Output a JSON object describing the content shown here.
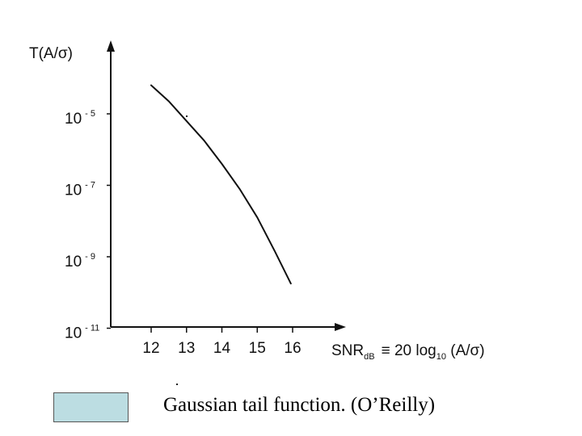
{
  "chart_data": {
    "type": "line",
    "ylabel": "T(A/σ)",
    "xlabel_main": "SNR",
    "xlabel_sub": "dB",
    "xlabel_rest_a": "≡ 20 log",
    "xlabel_sub2": "10",
    "xlabel_rest_b": " (A/σ)",
    "x_ticks": [
      "12",
      "13",
      "14",
      "15",
      "16"
    ],
    "y_ticks": [
      {
        "base": "10",
        "exp": "- 5"
      },
      {
        "base": "10",
        "exp": "- 7"
      },
      {
        "base": "10",
        "exp": "- 9"
      },
      {
        "base": "10",
        "exp": "- 11"
      }
    ],
    "xlim": [
      11.6,
      17.0
    ],
    "ylim_log10": [
      -11,
      -3.6
    ],
    "y_scale": "log",
    "series": [
      {
        "x": [
          12.0,
          12.5,
          13.0,
          13.5,
          14.0,
          14.5,
          15.0,
          15.5,
          15.95
        ],
        "log10_y": [
          -4.2,
          -4.65,
          -5.2,
          -5.75,
          -6.4,
          -7.1,
          -7.9,
          -8.85,
          -9.75
        ]
      }
    ],
    "colors": {
      "line": "#111111",
      "axis": "#111111"
    }
  },
  "caption": {
    "text": "Gaussian tail function.  (O’Reilly)",
    "box_color": "#bcdde2"
  }
}
